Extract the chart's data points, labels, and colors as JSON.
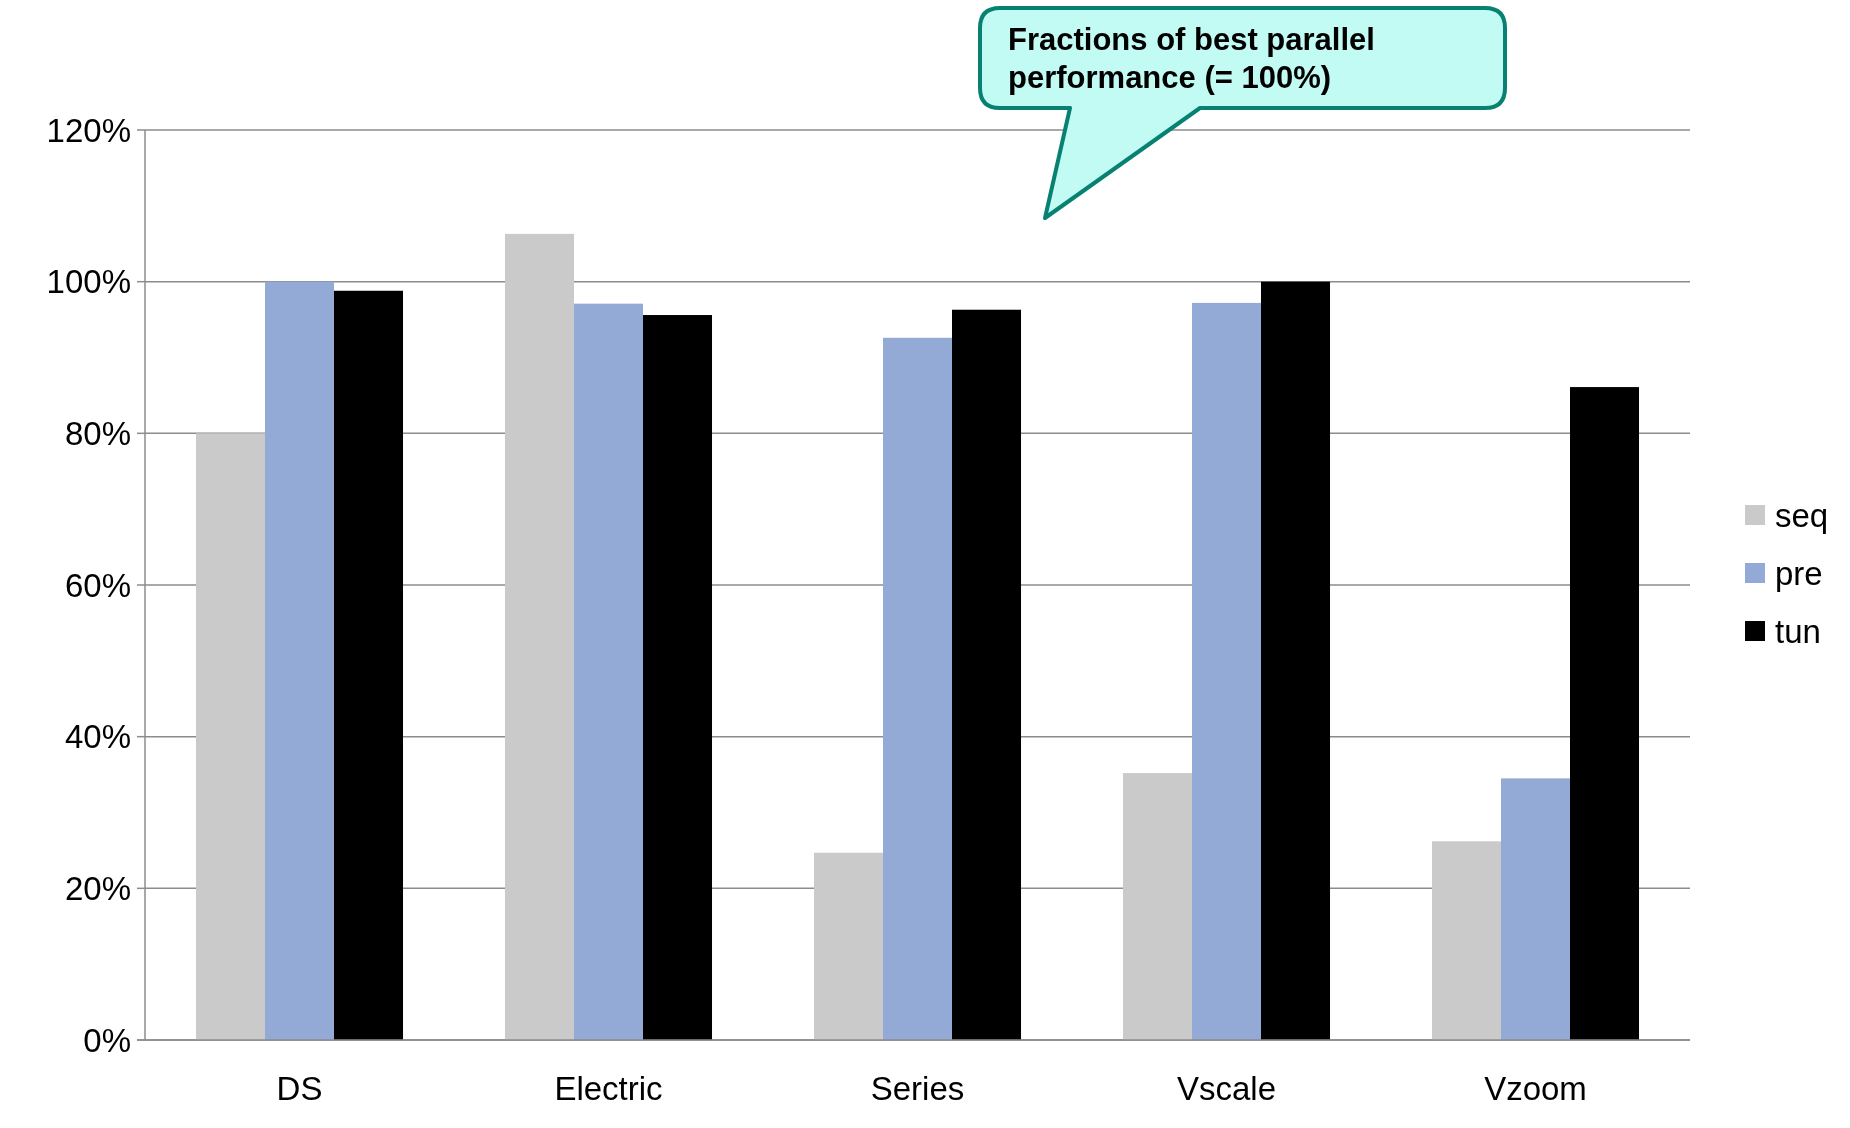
{
  "chart_data": {
    "type": "bar",
    "categories": [
      "DS",
      "Electric",
      "Series",
      "Vscale",
      "Vzoom"
    ],
    "series": [
      {
        "name": "seq",
        "color": "#cacaca",
        "values": [
          80,
          106.3,
          24.7,
          35.2,
          26.2
        ]
      },
      {
        "name": "pre",
        "color": "#93a9d6",
        "values": [
          100,
          97.1,
          92.6,
          97.2,
          34.5
        ]
      },
      {
        "name": "tun",
        "color": "#000000",
        "values": [
          98.8,
          95.6,
          96.3,
          100,
          86.1
        ]
      }
    ],
    "ylim": [
      0,
      120
    ],
    "yticks": [
      {
        "value": 0,
        "label": "0%"
      },
      {
        "value": 20,
        "label": "20%"
      },
      {
        "value": 40,
        "label": "40%"
      },
      {
        "value": 60,
        "label": "60%"
      },
      {
        "value": 80,
        "label": "80%"
      },
      {
        "value": 100,
        "label": "100%"
      },
      {
        "value": 120,
        "label": "120%"
      }
    ],
    "grid": "y",
    "legend": "right",
    "annotations": [
      "Fractions of best parallel performance (= 100%)"
    ]
  }
}
